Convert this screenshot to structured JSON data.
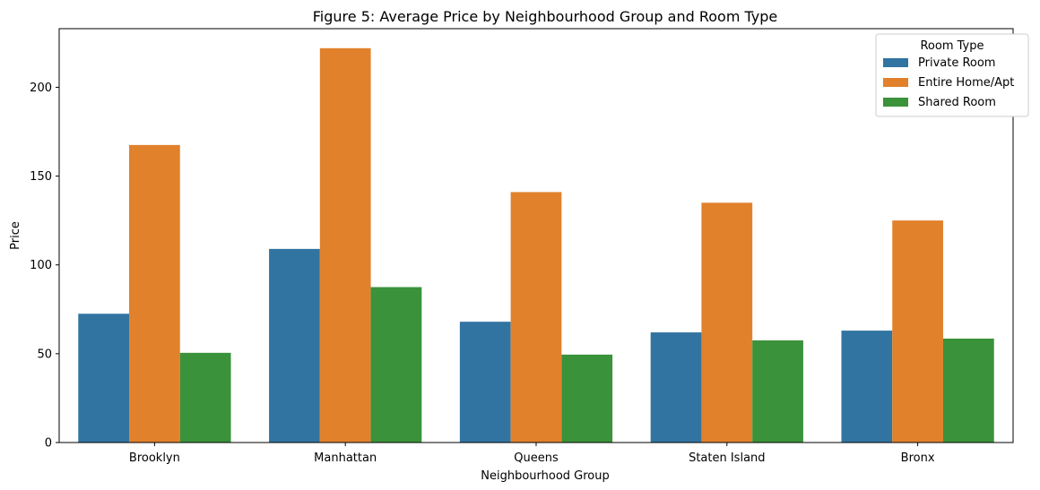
{
  "chart_data": {
    "type": "bar",
    "title": "Figure 5: Average Price by Neighbourhood Group and Room Type",
    "xlabel": "Neighbourhood Group",
    "ylabel": "Price",
    "categories": [
      "Brooklyn",
      "Manhattan",
      "Queens",
      "Staten Island",
      "Bronx"
    ],
    "ylim": [
      0,
      233
    ],
    "yticks": [
      0,
      50,
      100,
      150,
      200
    ],
    "grid": false,
    "legend": {
      "title": "Room Type",
      "position": "top-right"
    },
    "series": [
      {
        "name": "Private Room",
        "color": "#3274a1",
        "values": [
          72.5,
          109,
          68,
          62,
          63
        ]
      },
      {
        "name": "Entire Home/Apt",
        "color": "#e1812c",
        "values": [
          167.5,
          222,
          141,
          135,
          125
        ]
      },
      {
        "name": "Shared Room",
        "color": "#3a923a",
        "values": [
          50.5,
          87.5,
          49.5,
          57.5,
          58.5
        ]
      }
    ]
  }
}
